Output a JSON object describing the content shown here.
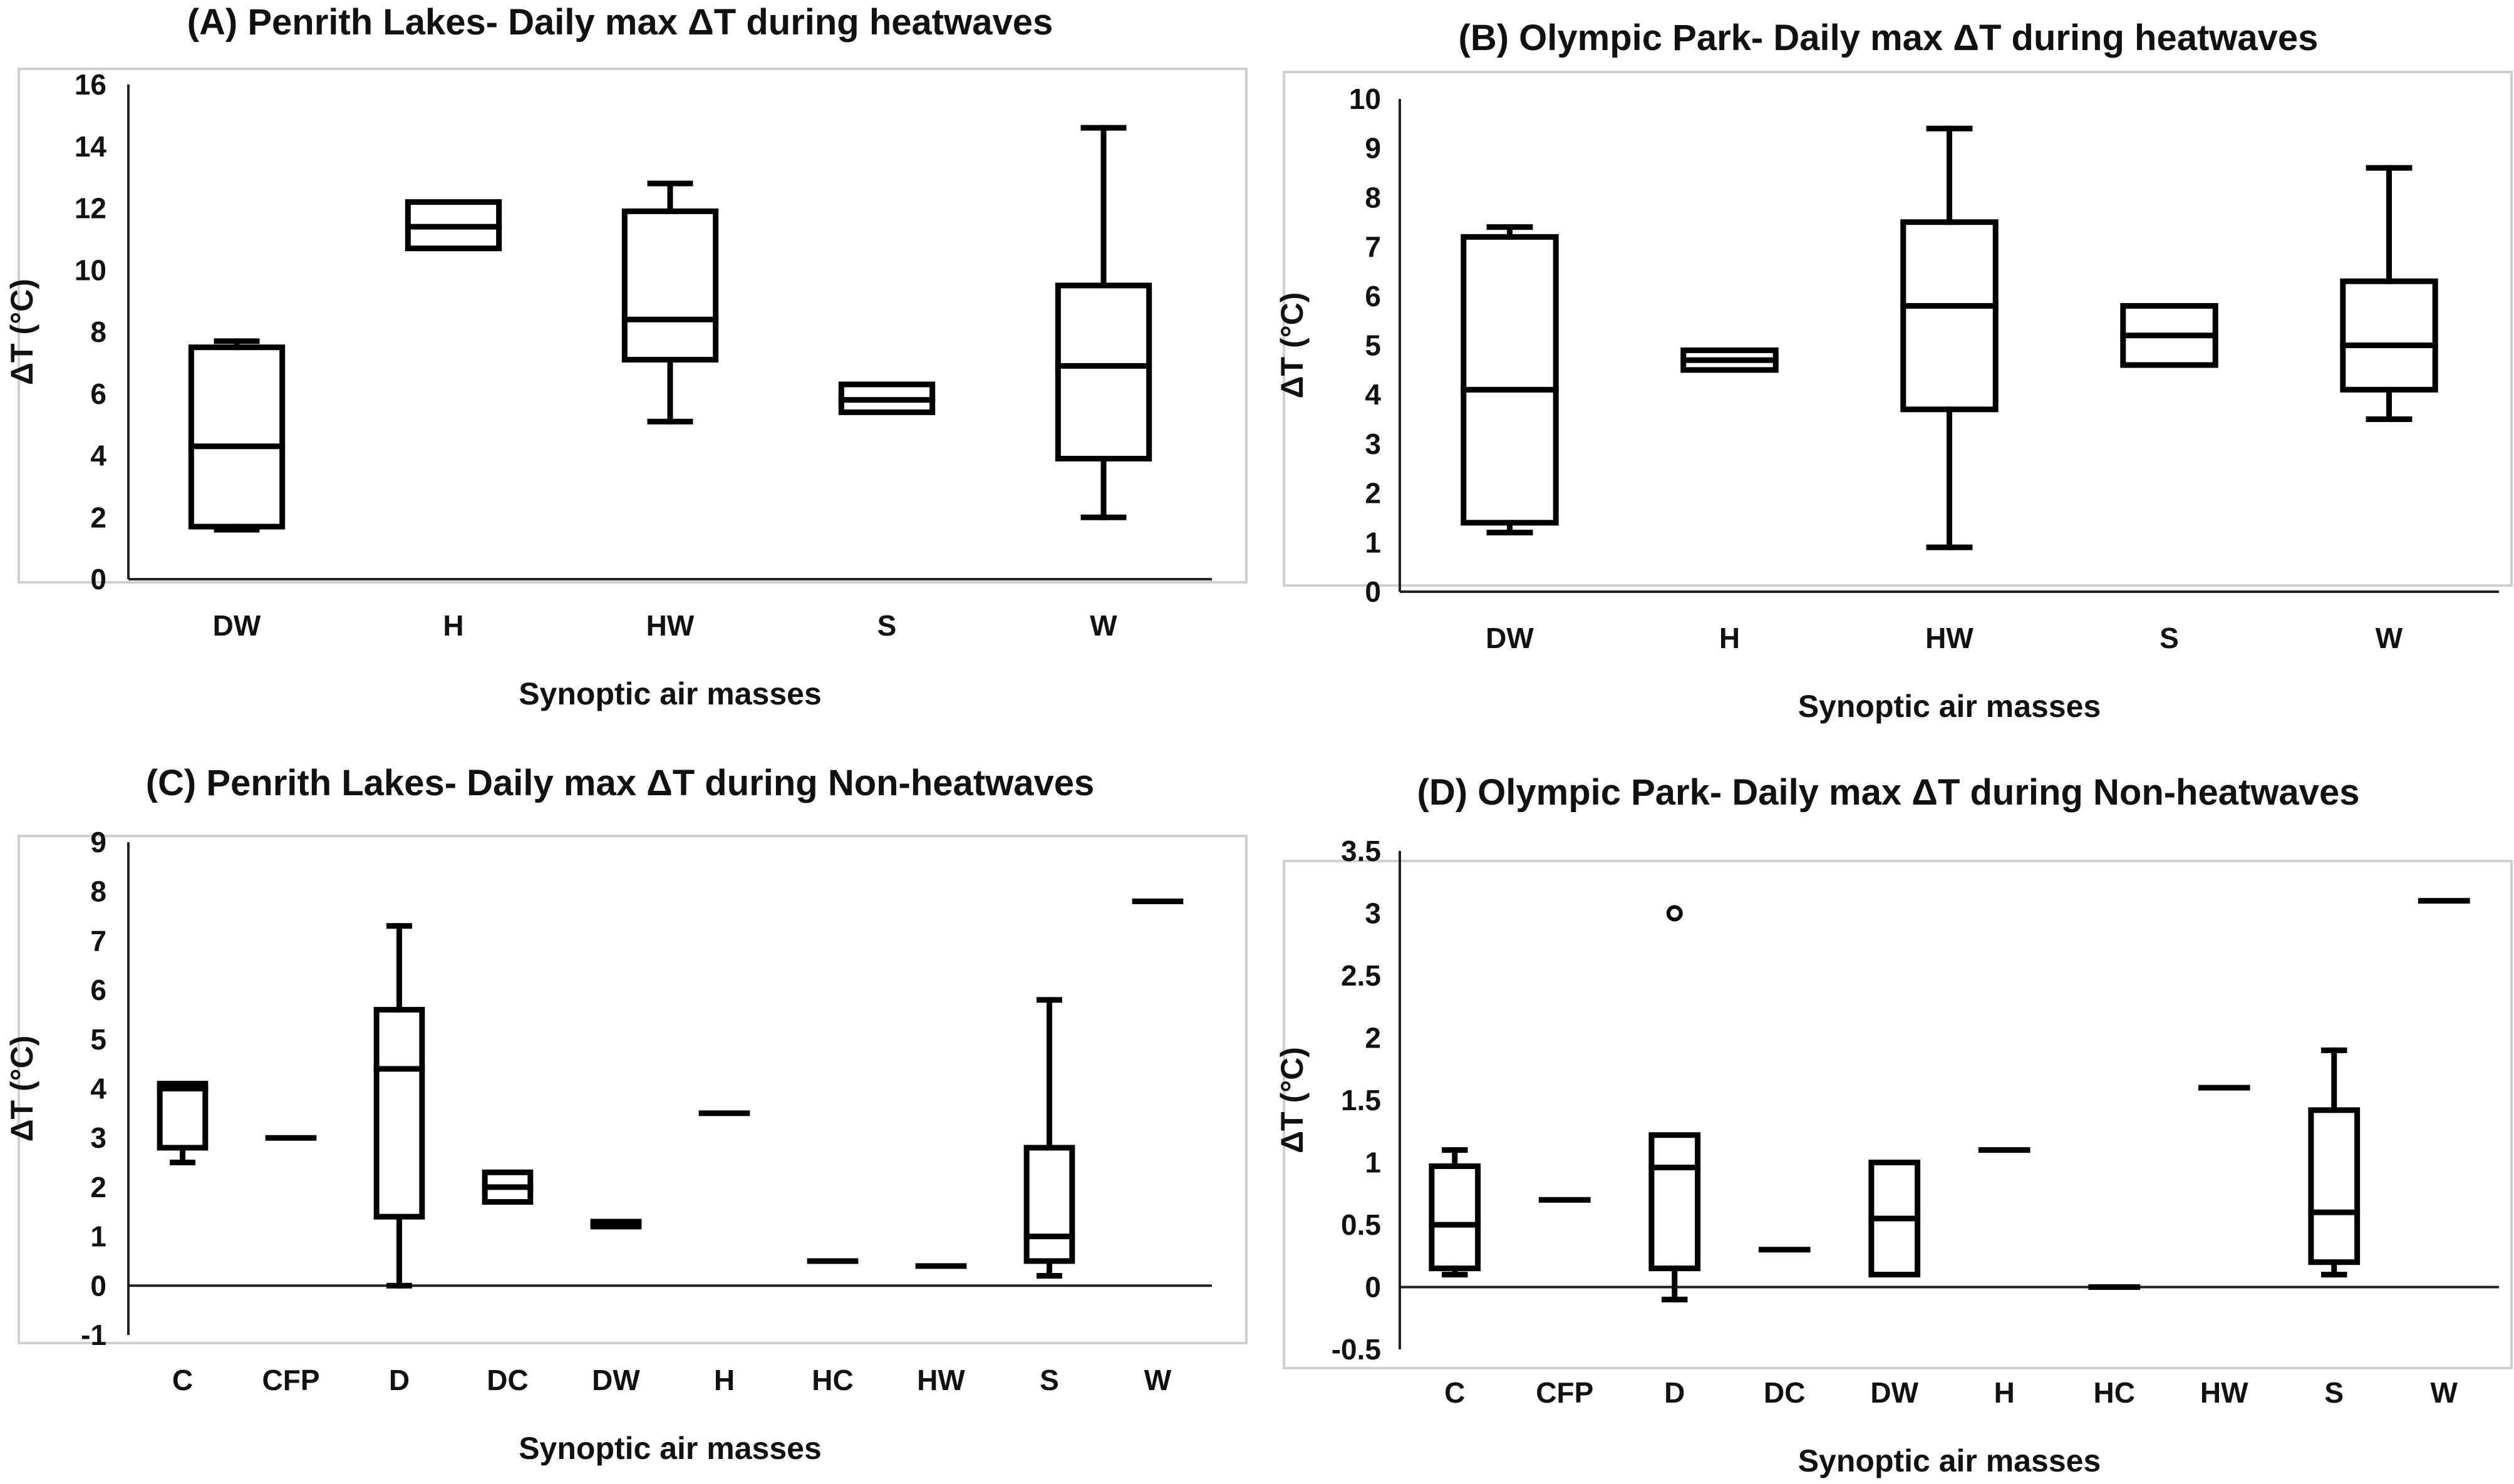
{
  "chart_data": [
    {
      "id": "A",
      "type": "boxplot",
      "title": "(A) Penrith Lakes- Daily max ΔT during heatwaves",
      "xlabel": "Synoptic air masses",
      "ylabel": "ΔT (°C)",
      "ylim": [
        0,
        16
      ],
      "yticks": [
        "0",
        "2",
        "4",
        "6",
        "8",
        "10",
        "12",
        "14",
        "16"
      ],
      "categories": [
        "DW",
        "H",
        "HW",
        "S",
        "W"
      ],
      "boxes": [
        {
          "category": "DW",
          "min": 1.6,
          "q1": 1.7,
          "median": 4.3,
          "q3": 7.5,
          "max": 7.7
        },
        {
          "category": "H",
          "min": 10.7,
          "q1": 10.7,
          "median": 11.4,
          "q3": 12.2,
          "max": 12.2
        },
        {
          "category": "HW",
          "min": 5.1,
          "q1": 7.1,
          "median": 8.4,
          "q3": 11.9,
          "max": 12.8
        },
        {
          "category": "S",
          "min": 5.4,
          "q1": 5.4,
          "median": 5.8,
          "q3": 6.3,
          "max": 6.3
        },
        {
          "category": "W",
          "min": 2.0,
          "q1": 3.9,
          "median": 6.9,
          "q3": 9.5,
          "max": 14.6
        }
      ],
      "outliers": []
    },
    {
      "id": "B",
      "type": "boxplot",
      "title": "(B) Olympic Park- Daily max ΔT during heatwaves",
      "xlabel": "Synoptic air masses",
      "ylabel": "ΔT (°C)",
      "ylim": [
        0,
        10
      ],
      "yticks": [
        "0",
        "1",
        "2",
        "3",
        "4",
        "5",
        "6",
        "7",
        "8",
        "9",
        "10"
      ],
      "categories": [
        "DW",
        "H",
        "HW",
        "S",
        "W"
      ],
      "boxes": [
        {
          "category": "DW",
          "min": 1.2,
          "q1": 1.4,
          "median": 4.1,
          "q3": 7.2,
          "max": 7.4
        },
        {
          "category": "H",
          "min": 4.5,
          "q1": 4.5,
          "median": 4.7,
          "q3": 4.9,
          "max": 4.9
        },
        {
          "category": "HW",
          "min": 0.9,
          "q1": 3.7,
          "median": 5.8,
          "q3": 7.5,
          "max": 9.4
        },
        {
          "category": "S",
          "min": 4.6,
          "q1": 4.6,
          "median": 5.2,
          "q3": 5.8,
          "max": 5.8
        },
        {
          "category": "W",
          "min": 3.5,
          "q1": 4.1,
          "median": 5.0,
          "q3": 6.3,
          "max": 8.6
        }
      ],
      "outliers": []
    },
    {
      "id": "C",
      "type": "boxplot",
      "title": "(C) Penrith Lakes- Daily max ΔT during Non-heatwaves",
      "xlabel": "Synoptic air masses",
      "ylabel": "ΔT (°C)",
      "ylim": [
        -1,
        9
      ],
      "yticks": [
        "-1",
        "0",
        "1",
        "2",
        "3",
        "4",
        "5",
        "6",
        "7",
        "8",
        "9"
      ],
      "categories": [
        "C",
        "CFP",
        "D",
        "DC",
        "DW",
        "H",
        "HC",
        "HW",
        "S",
        "W"
      ],
      "boxes": [
        {
          "category": "C",
          "min": 2.5,
          "q1": 2.8,
          "median": 4.0,
          "q3": 4.1,
          "max": 4.1
        },
        {
          "category": "CFP",
          "min": 3.0,
          "q1": 3.0,
          "median": 3.0,
          "q3": 3.0,
          "max": 3.0
        },
        {
          "category": "D",
          "min": 0.0,
          "q1": 1.4,
          "median": 4.4,
          "q3": 5.6,
          "max": 7.3
        },
        {
          "category": "DC",
          "min": 1.7,
          "q1": 1.7,
          "median": 2.0,
          "q3": 2.3,
          "max": 2.3
        },
        {
          "category": "DW",
          "min": 1.2,
          "q1": 1.2,
          "median": 1.25,
          "q3": 1.3,
          "max": 1.3
        },
        {
          "category": "H",
          "min": 3.5,
          "q1": 3.5,
          "median": 3.5,
          "q3": 3.5,
          "max": 3.5
        },
        {
          "category": "HC",
          "min": 0.5,
          "q1": 0.5,
          "median": 0.5,
          "q3": 0.5,
          "max": 0.5
        },
        {
          "category": "HW",
          "min": 0.4,
          "q1": 0.4,
          "median": 0.4,
          "q3": 0.4,
          "max": 0.4
        },
        {
          "category": "S",
          "min": 0.2,
          "q1": 0.5,
          "median": 1.0,
          "q3": 2.8,
          "max": 5.8
        },
        {
          "category": "W",
          "min": 7.8,
          "q1": 7.8,
          "median": 7.8,
          "q3": 7.8,
          "max": 7.8
        }
      ],
      "outliers": []
    },
    {
      "id": "D",
      "type": "boxplot",
      "title": "(D) Olympic Park- Daily max ΔT during Non-heatwaves",
      "xlabel": "Synoptic air masses",
      "ylabel": "ΔT (°C)",
      "ylim": [
        -0.5,
        3.5
      ],
      "yticks": [
        "-0.5",
        "0",
        "0.5",
        "1",
        "1.5",
        "2",
        "2.5",
        "3",
        "3.5"
      ],
      "categories": [
        "C",
        "CFP",
        "D",
        "DC",
        "DW",
        "H",
        "HC",
        "HW",
        "S",
        "W"
      ],
      "boxes": [
        {
          "category": "C",
          "min": 0.1,
          "q1": 0.15,
          "median": 0.5,
          "q3": 0.97,
          "max": 1.1
        },
        {
          "category": "CFP",
          "min": 0.7,
          "q1": 0.7,
          "median": 0.7,
          "q3": 0.7,
          "max": 0.7
        },
        {
          "category": "D",
          "min": -0.1,
          "q1": 0.15,
          "median": 0.96,
          "q3": 1.22,
          "max": 1.22
        },
        {
          "category": "DC",
          "min": 0.3,
          "q1": 0.3,
          "median": 0.3,
          "q3": 0.3,
          "max": 0.3
        },
        {
          "category": "DW",
          "min": 0.1,
          "q1": 0.1,
          "median": 0.55,
          "q3": 1.0,
          "max": 1.0
        },
        {
          "category": "H",
          "min": 1.1,
          "q1": 1.1,
          "median": 1.1,
          "q3": 1.1,
          "max": 1.1
        },
        {
          "category": "HC",
          "min": 0.0,
          "q1": 0.0,
          "median": 0.0,
          "q3": 0.0,
          "max": 0.0
        },
        {
          "category": "HW",
          "min": 1.6,
          "q1": 1.6,
          "median": 1.6,
          "q3": 1.6,
          "max": 1.6
        },
        {
          "category": "S",
          "min": 0.1,
          "q1": 0.2,
          "median": 0.6,
          "q3": 1.42,
          "max": 1.9
        },
        {
          "category": "W",
          "min": 3.1,
          "q1": 3.1,
          "median": 3.1,
          "q3": 3.1,
          "max": 3.1
        }
      ],
      "outliers": [
        {
          "category": "D",
          "value": 3.0
        }
      ]
    }
  ]
}
